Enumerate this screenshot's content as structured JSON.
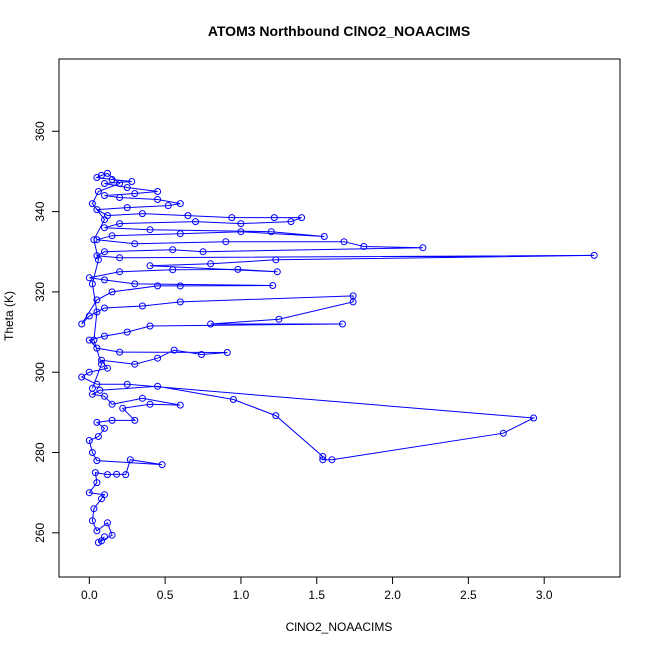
{
  "chart_data": {
    "type": "scatter",
    "title": "ATOM3 Northbound ClNO2_NOAACIMS",
    "xlabel": "ClNO2_NOAACIMS",
    "ylabel": "Theta (K)",
    "xlim": [
      -0.2,
      3.5
    ],
    "ylim": [
      249,
      378
    ],
    "x_ticks": [
      0,
      0.5,
      1,
      1.5,
      2,
      2.5,
      3
    ],
    "x_tick_labels": [
      "0.0",
      "0.5",
      "1.0",
      "1.5",
      "2.0",
      "2.5",
      "3.0"
    ],
    "y_ticks": [
      260,
      280,
      300,
      320,
      340,
      360
    ],
    "y_tick_labels": [
      "260",
      "280",
      "300",
      "320",
      "340",
      "360"
    ],
    "grid": false,
    "series_color": "#0000ff",
    "connected": true,
    "points": [
      [
        0.1,
        259.0
      ],
      [
        0.06,
        257.6
      ],
      [
        0.08,
        258.0
      ],
      [
        0.15,
        259.4
      ],
      [
        0.12,
        262.5
      ],
      [
        0.05,
        260.5
      ],
      [
        0.02,
        263.0
      ],
      [
        0.03,
        266.0
      ],
      [
        0.08,
        268.5
      ],
      [
        0.1,
        269.5
      ],
      [
        0.0,
        270.0
      ],
      [
        0.05,
        272.5
      ],
      [
        0.04,
        275.0
      ],
      [
        0.12,
        274.5
      ],
      [
        0.18,
        274.6
      ],
      [
        0.24,
        274.5
      ],
      [
        0.27,
        278.2
      ],
      [
        0.48,
        277.0
      ],
      [
        0.05,
        278.0
      ],
      [
        0.02,
        280.0
      ],
      [
        0.0,
        283.0
      ],
      [
        0.06,
        284.0
      ],
      [
        0.1,
        286.0
      ],
      [
        0.05,
        287.5
      ],
      [
        0.15,
        288.0
      ],
      [
        0.3,
        288.0
      ],
      [
        0.22,
        291.0
      ],
      [
        0.4,
        292.0
      ],
      [
        0.6,
        291.8
      ],
      [
        0.35,
        293.5
      ],
      [
        0.15,
        292.0
      ],
      [
        0.1,
        294.0
      ],
      [
        0.02,
        294.5
      ],
      [
        0.07,
        295.5
      ],
      [
        0.45,
        296.5
      ],
      [
        0.95,
        293.2
      ],
      [
        1.23,
        289.2
      ],
      [
        1.54,
        279.0
      ],
      [
        1.54,
        278.2
      ],
      [
        1.6,
        278.2
      ],
      [
        2.73,
        284.8
      ],
      [
        2.93,
        288.6
      ],
      [
        0.25,
        297.0
      ],
      [
        0.05,
        297.0
      ],
      [
        -0.05,
        298.8
      ],
      [
        0.0,
        300.0
      ],
      [
        0.12,
        301.0
      ],
      [
        0.08,
        303.0
      ],
      [
        0.3,
        302.0
      ],
      [
        0.45,
        303.5
      ],
      [
        0.56,
        305.5
      ],
      [
        0.74,
        304.4
      ],
      [
        0.91,
        304.9
      ],
      [
        0.2,
        305.0
      ],
      [
        0.05,
        306.0
      ],
      [
        0.0,
        308.0
      ],
      [
        0.1,
        309.0
      ],
      [
        0.25,
        310.0
      ],
      [
        0.4,
        311.5
      ],
      [
        1.67,
        312.0
      ],
      [
        0.8,
        312.0
      ],
      [
        1.25,
        313.2
      ],
      [
        1.74,
        317.5
      ],
      [
        1.74,
        319.0
      ],
      [
        0.6,
        317.5
      ],
      [
        0.35,
        316.5
      ],
      [
        0.1,
        316.0
      ],
      [
        0.0,
        314.0
      ],
      [
        -0.05,
        312.0
      ],
      [
        0.05,
        318.0
      ],
      [
        0.15,
        320.0
      ],
      [
        0.45,
        321.5
      ],
      [
        0.6,
        321.5
      ],
      [
        1.21,
        321.6
      ],
      [
        0.3,
        322.0
      ],
      [
        0.1,
        323.0
      ],
      [
        0.0,
        323.5
      ],
      [
        0.2,
        325.0
      ],
      [
        0.55,
        325.5
      ],
      [
        0.98,
        325.6
      ],
      [
        1.24,
        325.0
      ],
      [
        0.4,
        326.5
      ],
      [
        0.8,
        327.0
      ],
      [
        1.23,
        328.0
      ],
      [
        3.33,
        329.1
      ],
      [
        0.2,
        328.5
      ],
      [
        0.05,
        329.0
      ],
      [
        0.1,
        330.0
      ],
      [
        0.55,
        330.5
      ],
      [
        0.75,
        330.0
      ],
      [
        2.2,
        331.0
      ],
      [
        1.81,
        331.3
      ],
      [
        1.68,
        332.5
      ],
      [
        0.9,
        332.5
      ],
      [
        0.3,
        332.0
      ],
      [
        0.05,
        333.0
      ],
      [
        0.15,
        334.0
      ],
      [
        0.6,
        334.5
      ],
      [
        1.0,
        335.0
      ],
      [
        1.55,
        333.8
      ],
      [
        1.2,
        335.0
      ],
      [
        0.4,
        335.5
      ],
      [
        0.1,
        336.0
      ],
      [
        0.2,
        337.0
      ],
      [
        0.7,
        337.5
      ],
      [
        1.0,
        337.0
      ],
      [
        1.33,
        337.5
      ],
      [
        1.4,
        338.5
      ],
      [
        1.22,
        338.5
      ],
      [
        0.94,
        338.5
      ],
      [
        0.65,
        339.0
      ],
      [
        0.35,
        339.5
      ],
      [
        0.12,
        339.0
      ],
      [
        0.05,
        340.5
      ],
      [
        0.25,
        341.0
      ],
      [
        0.52,
        341.5
      ],
      [
        0.6,
        342.0
      ],
      [
        0.45,
        343.0
      ],
      [
        0.2,
        343.5
      ],
      [
        0.1,
        344.0
      ],
      [
        0.3,
        344.5
      ],
      [
        0.45,
        345.0
      ],
      [
        0.25,
        346.0
      ],
      [
        0.1,
        347.0
      ],
      [
        0.28,
        347.5
      ],
      [
        0.15,
        348.0
      ],
      [
        0.05,
        348.5
      ],
      [
        0.08,
        349.0
      ],
      [
        0.12,
        349.5
      ],
      [
        0.2,
        347.0
      ],
      [
        0.06,
        345.0
      ],
      [
        0.02,
        342.0
      ],
      [
        0.1,
        338.0
      ],
      [
        0.03,
        333.0
      ],
      [
        0.06,
        328.0
      ],
      [
        0.02,
        322.0
      ],
      [
        0.05,
        315.0
      ],
      [
        0.03,
        308.0
      ],
      [
        0.08,
        302.0
      ],
      [
        0.02,
        296.0
      ]
    ]
  }
}
